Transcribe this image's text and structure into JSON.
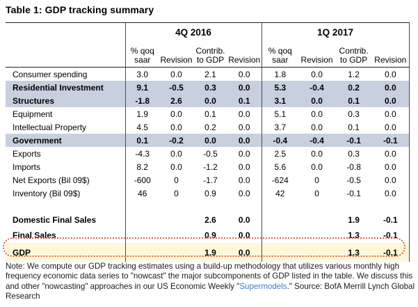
{
  "chart_data": {
    "type": "table",
    "title": "Table 1: GDP tracking summary",
    "column_groups": [
      "4Q 2016",
      "1Q 2017"
    ],
    "sub_columns": [
      {
        "l1": "% qoq",
        "l2": "saar"
      },
      {
        "l1": "",
        "l2": "Revision"
      },
      {
        "l1": "Contrib.",
        "l2": "to GDP"
      },
      {
        "l1": "",
        "l2": "Revision"
      },
      {
        "l1": "% qoq",
        "l2": "saar"
      },
      {
        "l1": "",
        "l2": "Revision"
      },
      {
        "l1": "Contrib.",
        "l2": "to GDP"
      },
      {
        "l1": "",
        "l2": "Revision"
      }
    ],
    "rows": [
      {
        "label": "Consumer spending",
        "style": "normal",
        "values": [
          "3.0",
          "0.0",
          "2.1",
          "0.0",
          "1.8",
          "0.0",
          "1.2",
          "0.0"
        ]
      },
      {
        "label": "Residential Investment",
        "style": "shaded",
        "values": [
          "9.1",
          "-0.5",
          "0.3",
          "0.0",
          "5.3",
          "-0.4",
          "0.2",
          "0.0"
        ]
      },
      {
        "label": "Structures",
        "style": "shaded",
        "values": [
          "-1.8",
          "2.6",
          "0.0",
          "0.1",
          "3.1",
          "0.0",
          "0.1",
          "0.0"
        ]
      },
      {
        "label": "Equipment",
        "style": "normal",
        "values": [
          "1.9",
          "0.0",
          "0.1",
          "0.0",
          "5.1",
          "0.0",
          "0.3",
          "0.0"
        ]
      },
      {
        "label": "Intellectual Property",
        "style": "normal",
        "values": [
          "4.5",
          "0.0",
          "0.2",
          "0.0",
          "3.7",
          "0.0",
          "0.1",
          "0.0"
        ]
      },
      {
        "label": "Government",
        "style": "shaded",
        "values": [
          "0.1",
          "-0.2",
          "0.0",
          "0.0",
          "-0.4",
          "-0.4",
          "-0.1",
          "-0.1"
        ]
      },
      {
        "label": "Exports",
        "style": "normal",
        "values": [
          "-4.3",
          "0.0",
          "-0.5",
          "0.0",
          "2.5",
          "0.0",
          "0.3",
          "0.0"
        ]
      },
      {
        "label": "Imports",
        "style": "normal",
        "values": [
          "8.2",
          "0.0",
          "-1.2",
          "0.0",
          "5.6",
          "0.0",
          "-0.8",
          "0.0"
        ]
      },
      {
        "label": "Net Exports (Bil 09$)",
        "style": "normal",
        "values": [
          "-600",
          "0",
          "-1.7",
          "0.0",
          "-624",
          "0",
          "-0.5",
          "0.0"
        ]
      },
      {
        "label": "Inventory (Bil 09$)",
        "style": "normal",
        "values": [
          "46",
          "0",
          "0.9",
          "0.0",
          "42",
          "0",
          "-0.1",
          "0.0"
        ]
      },
      {
        "label": "",
        "style": "spacer",
        "values": [
          "",
          "",
          "",
          "",
          "",
          "",
          "",
          ""
        ]
      },
      {
        "label": "Domestic Final Sales",
        "style": "summary",
        "values": [
          "",
          "",
          "2.6",
          "0.0",
          "",
          "",
          "1.9",
          "-0.1"
        ]
      },
      {
        "label": "Final Sales",
        "style": "summary",
        "values": [
          "",
          "",
          "0.9",
          "0.0",
          "",
          "",
          "1.3",
          "-0.1"
        ]
      },
      {
        "label": "GDP",
        "style": "gdp",
        "values": [
          "",
          "",
          "1.9",
          "0.0",
          "",
          "",
          "1.3",
          "-0.1"
        ]
      }
    ]
  },
  "note": {
    "before": "Note: We compute our GDP tracking estimates using a build-up methodology that utilizes various monthly high frequency economic data series to \"nowcast\" the major subcomponents of GDP listed in the table. We discuss this and other \"nowcasting\" approaches in our US Economic Weekly \"",
    "link": "Supermodels",
    "after": ".\" Source: BofA Merrill Lynch Global Research"
  },
  "colors": {
    "shaded_row": "#c8d0df",
    "gdp_highlight": "#fdf8da",
    "gdp_outline": "#e2604a",
    "link_blue": "#3e7fc1",
    "border": "#222222"
  }
}
